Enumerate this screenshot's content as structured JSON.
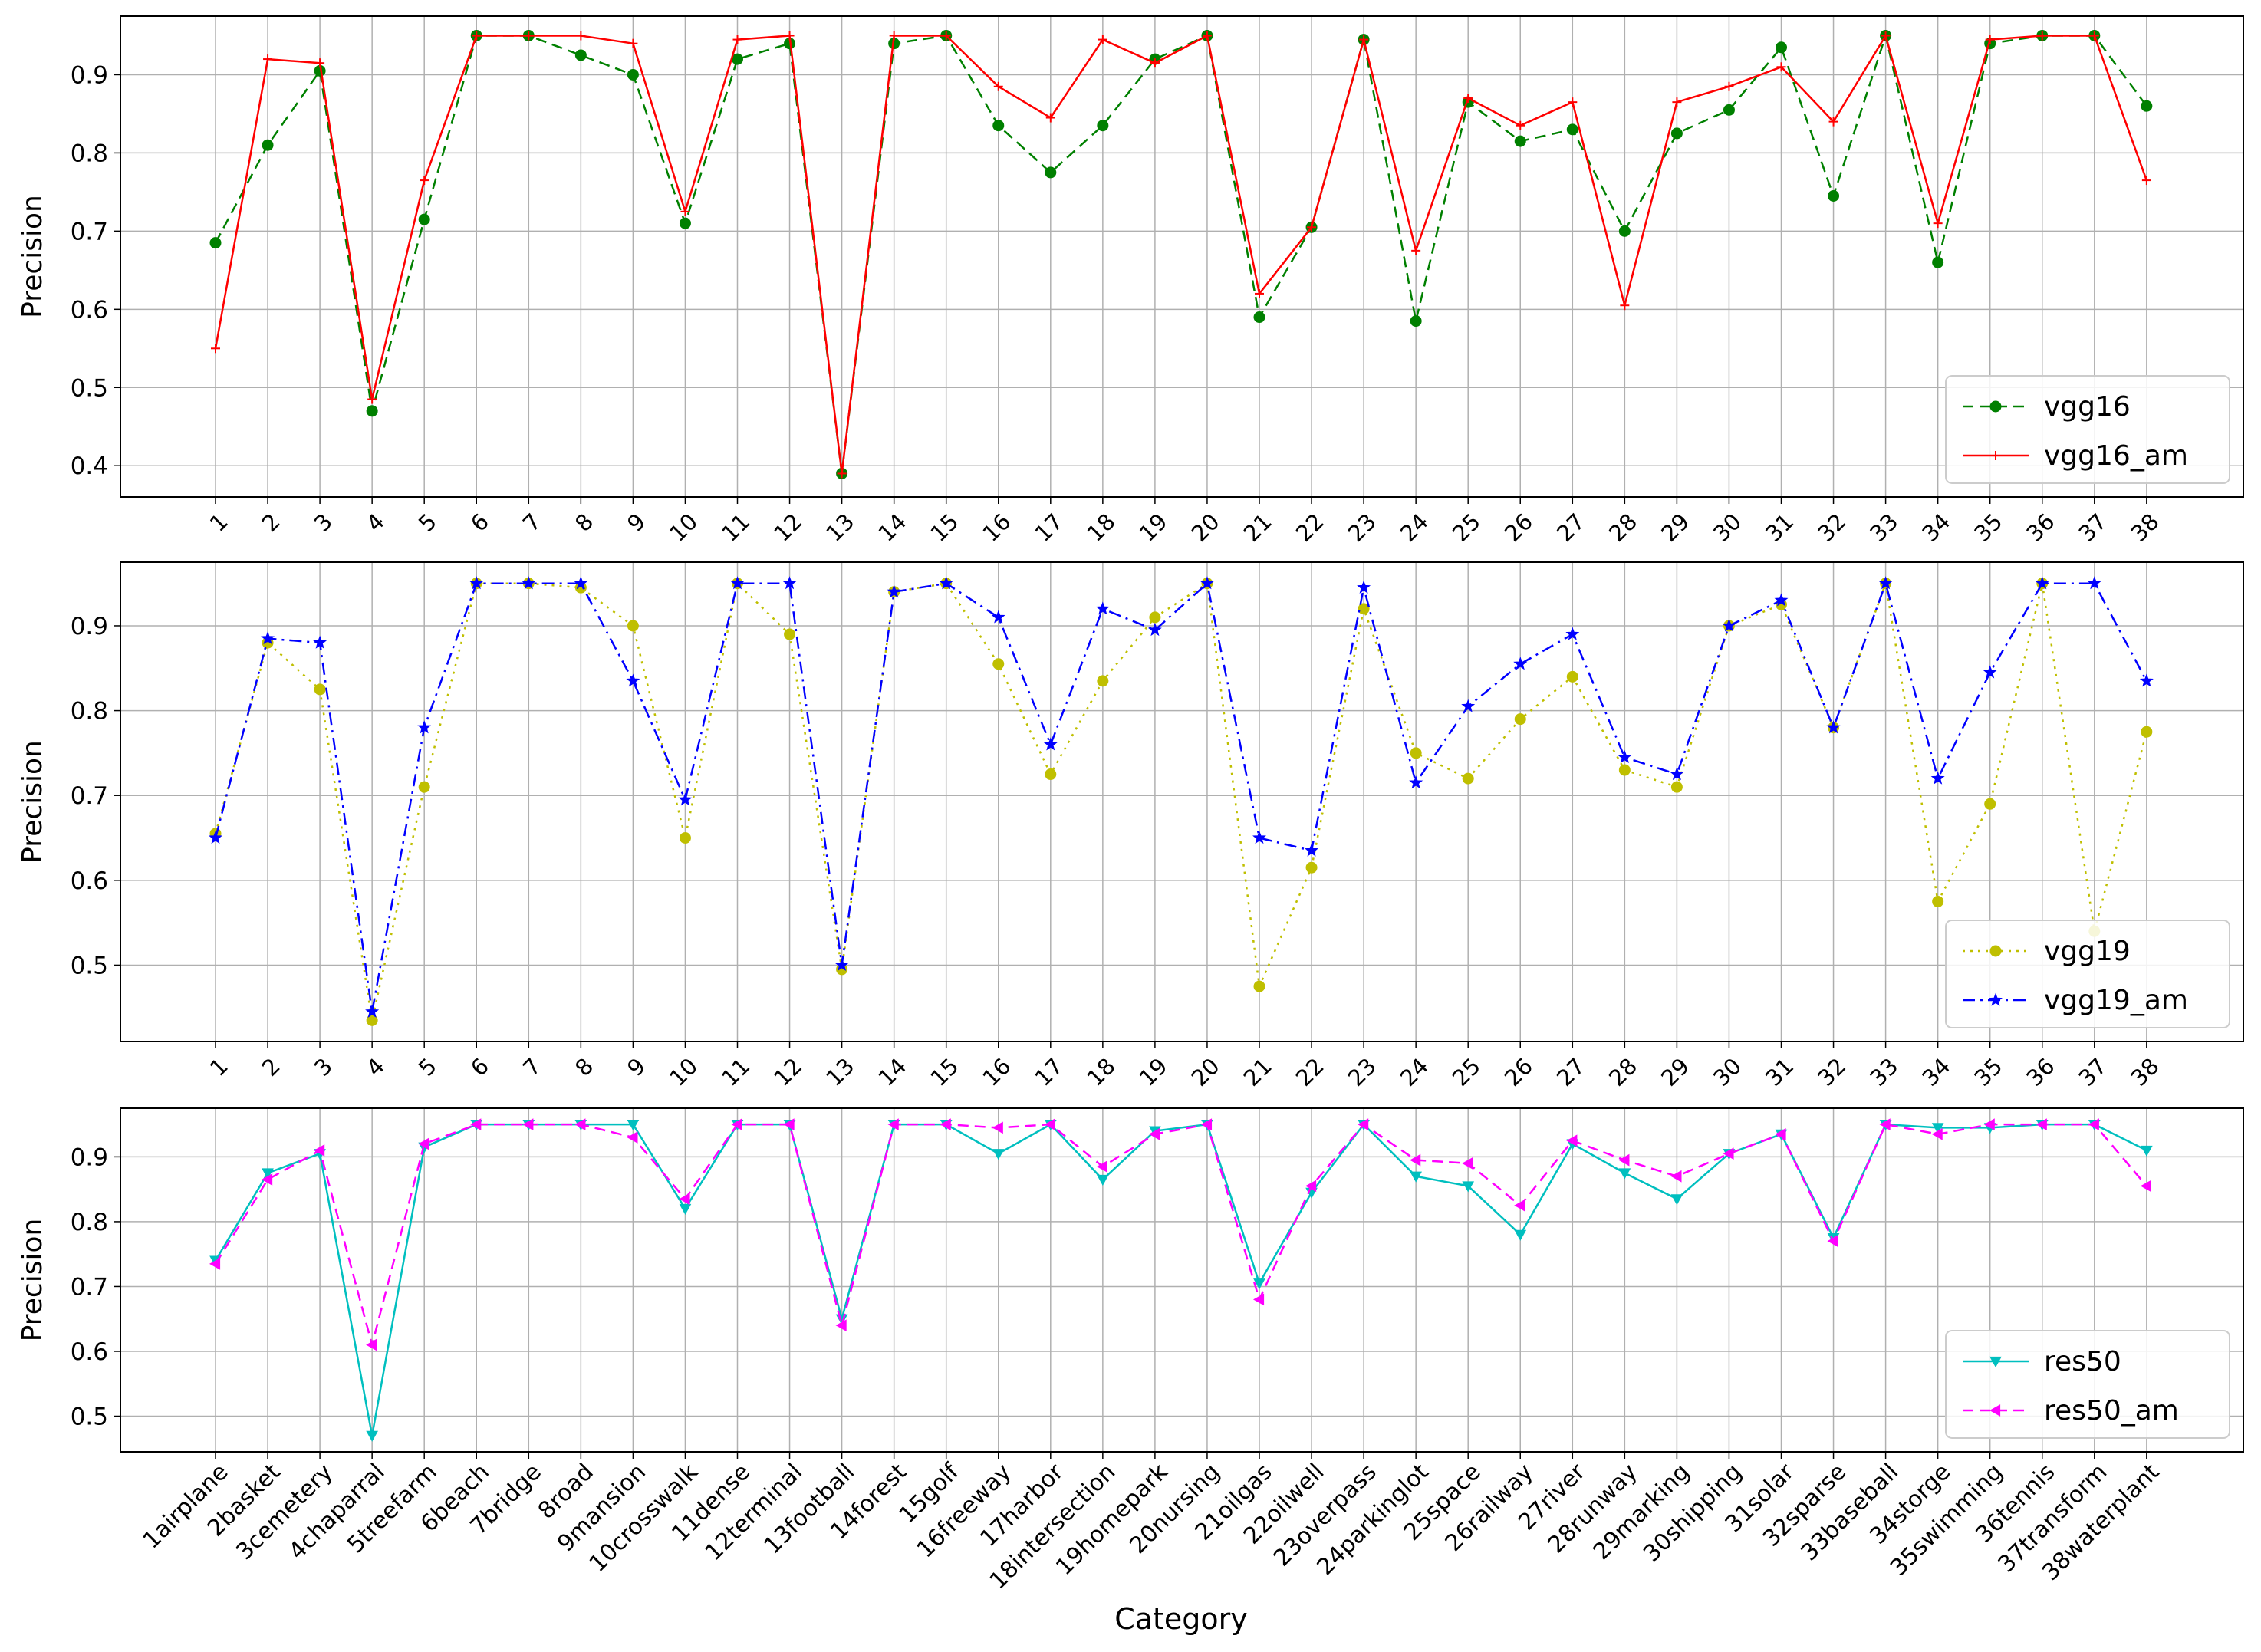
{
  "chart_data": [
    {
      "type": "line",
      "title": "",
      "xlabel": "",
      "ylabel": "Precision",
      "x_tick_labels": [
        "1",
        "2",
        "3",
        "4",
        "5",
        "6",
        "7",
        "8",
        "9",
        "10",
        "11",
        "12",
        "13",
        "14",
        "15",
        "16",
        "17",
        "18",
        "19",
        "20",
        "21",
        "22",
        "23",
        "24",
        "25",
        "26",
        "27",
        "28",
        "29",
        "30",
        "31",
        "32",
        "33",
        "34",
        "35",
        "36",
        "37",
        "38"
      ],
      "ylim": [
        0.36,
        0.975
      ],
      "y_ticks": [
        0.4,
        0.5,
        0.6,
        0.7,
        0.8,
        0.9
      ],
      "y_tick_labels": [
        "0.4",
        "0.5",
        "0.6",
        "0.7",
        "0.8",
        "0.9"
      ],
      "grid": true,
      "legend_position": "lower-right",
      "series": [
        {
          "name": "vgg16",
          "color": "#008000",
          "line_style": "dashed",
          "marker": "circle",
          "values": [
            0.685,
            0.81,
            0.905,
            0.47,
            0.715,
            0.95,
            0.95,
            0.925,
            0.9,
            0.71,
            0.92,
            0.94,
            0.39,
            0.94,
            0.95,
            0.835,
            0.775,
            0.835,
            0.92,
            0.95,
            0.59,
            0.705,
            0.945,
            0.585,
            0.865,
            0.815,
            0.83,
            0.7,
            0.825,
            0.855,
            0.935,
            0.745,
            0.95,
            0.66,
            0.94,
            0.95,
            0.95,
            0.86
          ]
        },
        {
          "name": "vgg16_am",
          "color": "#ff0000",
          "line_style": "solid",
          "marker": "plus",
          "values": [
            0.55,
            0.92,
            0.915,
            0.485,
            0.765,
            0.95,
            0.95,
            0.95,
            0.94,
            0.725,
            0.945,
            0.95,
            0.39,
            0.95,
            0.95,
            0.885,
            0.845,
            0.945,
            0.915,
            0.95,
            0.62,
            0.705,
            0.945,
            0.675,
            0.87,
            0.835,
            0.865,
            0.605,
            0.865,
            0.885,
            0.91,
            0.84,
            0.95,
            0.71,
            0.945,
            0.95,
            0.95,
            0.765
          ]
        }
      ]
    },
    {
      "type": "line",
      "title": "",
      "xlabel": "",
      "ylabel": "Precision",
      "x_tick_labels": [
        "1",
        "2",
        "3",
        "4",
        "5",
        "6",
        "7",
        "8",
        "9",
        "10",
        "11",
        "12",
        "13",
        "14",
        "15",
        "16",
        "17",
        "18",
        "19",
        "20",
        "21",
        "22",
        "23",
        "24",
        "25",
        "26",
        "27",
        "28",
        "29",
        "30",
        "31",
        "32",
        "33",
        "34",
        "35",
        "36",
        "37",
        "38"
      ],
      "ylim": [
        0.41,
        0.975
      ],
      "y_ticks": [
        0.5,
        0.6,
        0.7,
        0.8,
        0.9
      ],
      "y_tick_labels": [
        "0.5",
        "0.6",
        "0.7",
        "0.8",
        "0.9"
      ],
      "grid": true,
      "legend_position": "lower-right",
      "series": [
        {
          "name": "vgg19",
          "color": "#bfbf00",
          "line_style": "dotted",
          "marker": "circle",
          "values": [
            0.655,
            0.88,
            0.825,
            0.435,
            0.71,
            0.95,
            0.95,
            0.945,
            0.9,
            0.65,
            0.95,
            0.89,
            0.495,
            0.94,
            0.95,
            0.855,
            0.725,
            0.835,
            0.91,
            0.95,
            0.475,
            0.615,
            0.92,
            0.75,
            0.72,
            0.79,
            0.84,
            0.73,
            0.71,
            0.9,
            0.925,
            0.78,
            0.95,
            0.575,
            0.69,
            0.95,
            0.54,
            0.775
          ]
        },
        {
          "name": "vgg19_am",
          "color": "#0000ff",
          "line_style": "dashdot",
          "marker": "star",
          "values": [
            0.65,
            0.885,
            0.88,
            0.445,
            0.78,
            0.95,
            0.95,
            0.95,
            0.835,
            0.695,
            0.95,
            0.95,
            0.5,
            0.94,
            0.95,
            0.91,
            0.76,
            0.92,
            0.895,
            0.95,
            0.65,
            0.635,
            0.945,
            0.715,
            0.805,
            0.855,
            0.89,
            0.745,
            0.725,
            0.9,
            0.93,
            0.78,
            0.95,
            0.72,
            0.845,
            0.95,
            0.95,
            0.835
          ]
        }
      ]
    },
    {
      "type": "line",
      "title": "",
      "xlabel": "Category",
      "ylabel": "Precision",
      "x_tick_labels": [
        "1airplane",
        "2basket",
        "3cemetery",
        "4chaparral",
        "5treefarm",
        "6beach",
        "7bridge",
        "8road",
        "9mansion",
        "10crosswalk",
        "11dense",
        "12terminal",
        "13football",
        "14forest",
        "15golf",
        "16freeway",
        "17harbor",
        "18intersection",
        "19homepark",
        "20nursing",
        "21oilgas",
        "22oilwell",
        "23overpass",
        "24parkinglot",
        "25space",
        "26railway",
        "27river",
        "28runway",
        "29marking",
        "30shipping",
        "31solar",
        "32sparse",
        "33baseball",
        "34storge",
        "35swimming",
        "36tennis",
        "37transform",
        "38waterplant"
      ],
      "ylim": [
        0.445,
        0.975
      ],
      "y_ticks": [
        0.5,
        0.6,
        0.7,
        0.8,
        0.9
      ],
      "y_tick_labels": [
        "0.5",
        "0.6",
        "0.7",
        "0.8",
        "0.9"
      ],
      "grid": true,
      "legend_position": "lower-right",
      "series": [
        {
          "name": "res50",
          "color": "#00bfbf",
          "line_style": "solid",
          "marker": "triangle-down",
          "values": [
            0.74,
            0.875,
            0.905,
            0.47,
            0.915,
            0.95,
            0.95,
            0.95,
            0.95,
            0.82,
            0.95,
            0.95,
            0.65,
            0.95,
            0.95,
            0.905,
            0.95,
            0.865,
            0.94,
            0.95,
            0.705,
            0.845,
            0.95,
            0.87,
            0.855,
            0.78,
            0.92,
            0.875,
            0.835,
            0.905,
            0.935,
            0.775,
            0.95,
            0.945,
            0.945,
            0.95,
            0.95,
            0.91
          ]
        },
        {
          "name": "res50_am",
          "color": "#ff00ff",
          "line_style": "dashed",
          "marker": "triangle-left",
          "values": [
            0.735,
            0.865,
            0.91,
            0.61,
            0.92,
            0.95,
            0.95,
            0.95,
            0.93,
            0.835,
            0.95,
            0.95,
            0.64,
            0.95,
            0.95,
            0.945,
            0.95,
            0.885,
            0.935,
            0.95,
            0.68,
            0.855,
            0.95,
            0.895,
            0.89,
            0.825,
            0.925,
            0.895,
            0.87,
            0.905,
            0.935,
            0.77,
            0.95,
            0.935,
            0.95,
            0.95,
            0.95,
            0.855
          ]
        }
      ]
    }
  ]
}
